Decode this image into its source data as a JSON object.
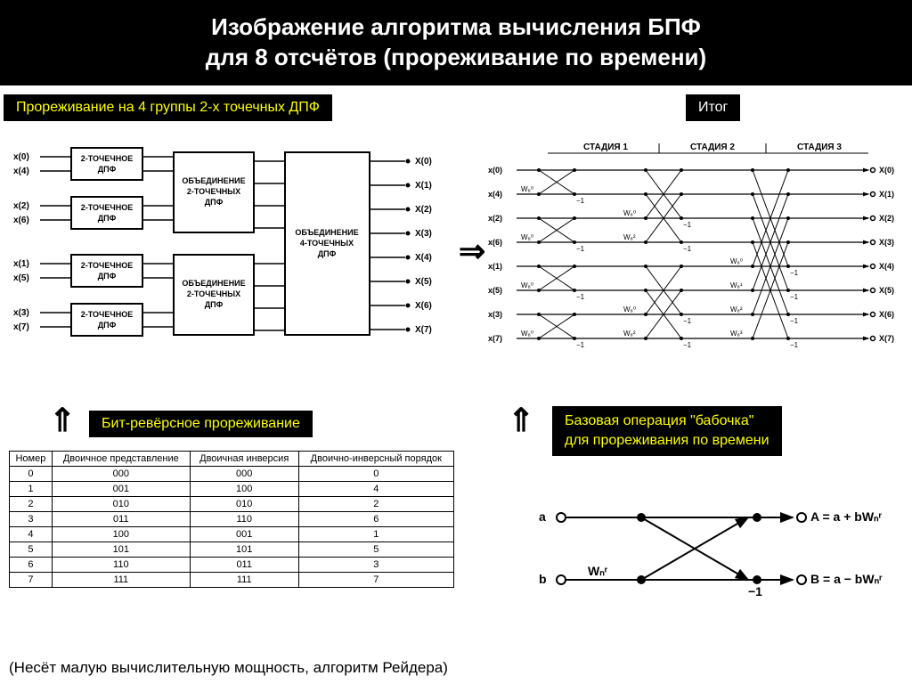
{
  "title_line1": "Изображение алгоритма вычисления БПФ",
  "title_line2": "для 8 отсчётов (прореживание по времени)",
  "labels": {
    "decimation": "Прореживание на 4 группы 2-х точечных ДПФ",
    "result": "Итог",
    "bitrev": "Бит-ревёрсное прореживание",
    "butterfly1": "Базовая операция \"бабочка\"",
    "butterfly2": "для прореживания по времени"
  },
  "block": {
    "dft2": "2-ТОЧЕЧНОЕ\nДПФ",
    "comb2": "ОБЪЕДИНЕНИЕ\n2-ТОЧЕЧНЫХ\nДПФ",
    "comb4": "ОБЪЕДИНЕНИЕ\n4-ТОЧЕЧНЫХ\nДПФ",
    "inputs": [
      "x(0)",
      "x(4)",
      "x(2)",
      "x(6)",
      "x(1)",
      "x(5)",
      "x(3)",
      "x(7)"
    ],
    "outputs": [
      "X(0)",
      "X(1)",
      "X(2)",
      "X(3)",
      "X(4)",
      "X(5)",
      "X(6)",
      "X(7)"
    ]
  },
  "table": {
    "headers": [
      "Номер",
      "Двоичное представление",
      "Двоичная инверсия",
      "Двоично-инверсный порядок"
    ],
    "rows": [
      [
        "0",
        "000",
        "000",
        "0"
      ],
      [
        "1",
        "001",
        "100",
        "4"
      ],
      [
        "2",
        "010",
        "010",
        "2"
      ],
      [
        "3",
        "011",
        "110",
        "6"
      ],
      [
        "4",
        "100",
        "001",
        "1"
      ],
      [
        "5",
        "101",
        "101",
        "5"
      ],
      [
        "6",
        "110",
        "011",
        "3"
      ],
      [
        "7",
        "111",
        "111",
        "7"
      ]
    ]
  },
  "stages": {
    "s1": "СТАДИЯ 1",
    "s2": "СТАДИЯ 2",
    "s3": "СТАДИЯ 3",
    "inputs": [
      "x(0)",
      "x(4)",
      "x(2)",
      "x(6)",
      "x(1)",
      "x(5)",
      "x(3)",
      "x(7)"
    ],
    "outputs": [
      "X(0)",
      "X(1)",
      "X(2)",
      "X(3)",
      "X(4)",
      "X(5)",
      "X(6)",
      "X(7)"
    ],
    "weights_s1": [
      "W₈⁰",
      "W₈⁰",
      "W₈⁰",
      "W₈⁰"
    ],
    "weights_s2": [
      "W₈⁰",
      "W₈²",
      "W₈⁰",
      "W₈²"
    ],
    "weights_s3": [
      "W₈⁰",
      "W₈¹",
      "W₈²",
      "W₈³"
    ],
    "minus1": "−1"
  },
  "basic": {
    "a": "a",
    "b": "b",
    "W": "Wₙʳ",
    "m1": "−1",
    "A": "A = a + bWₙʳ",
    "B": "B = a − bWₙʳ"
  },
  "footnote": "(Несёт малую вычислительную мощность, алгоритм Рейдера)",
  "arrows": {
    "right": "⇒",
    "up": "⇑"
  },
  "style": {
    "bg": "#ffffff",
    "title_bg": "#000000",
    "title_fg": "#ffffff",
    "label_bg": "#000000",
    "label_fg": "#ffff00",
    "stroke": "#000000",
    "font_title": 26,
    "font_label": 16,
    "font_diag": 10,
    "font_table": 11
  }
}
